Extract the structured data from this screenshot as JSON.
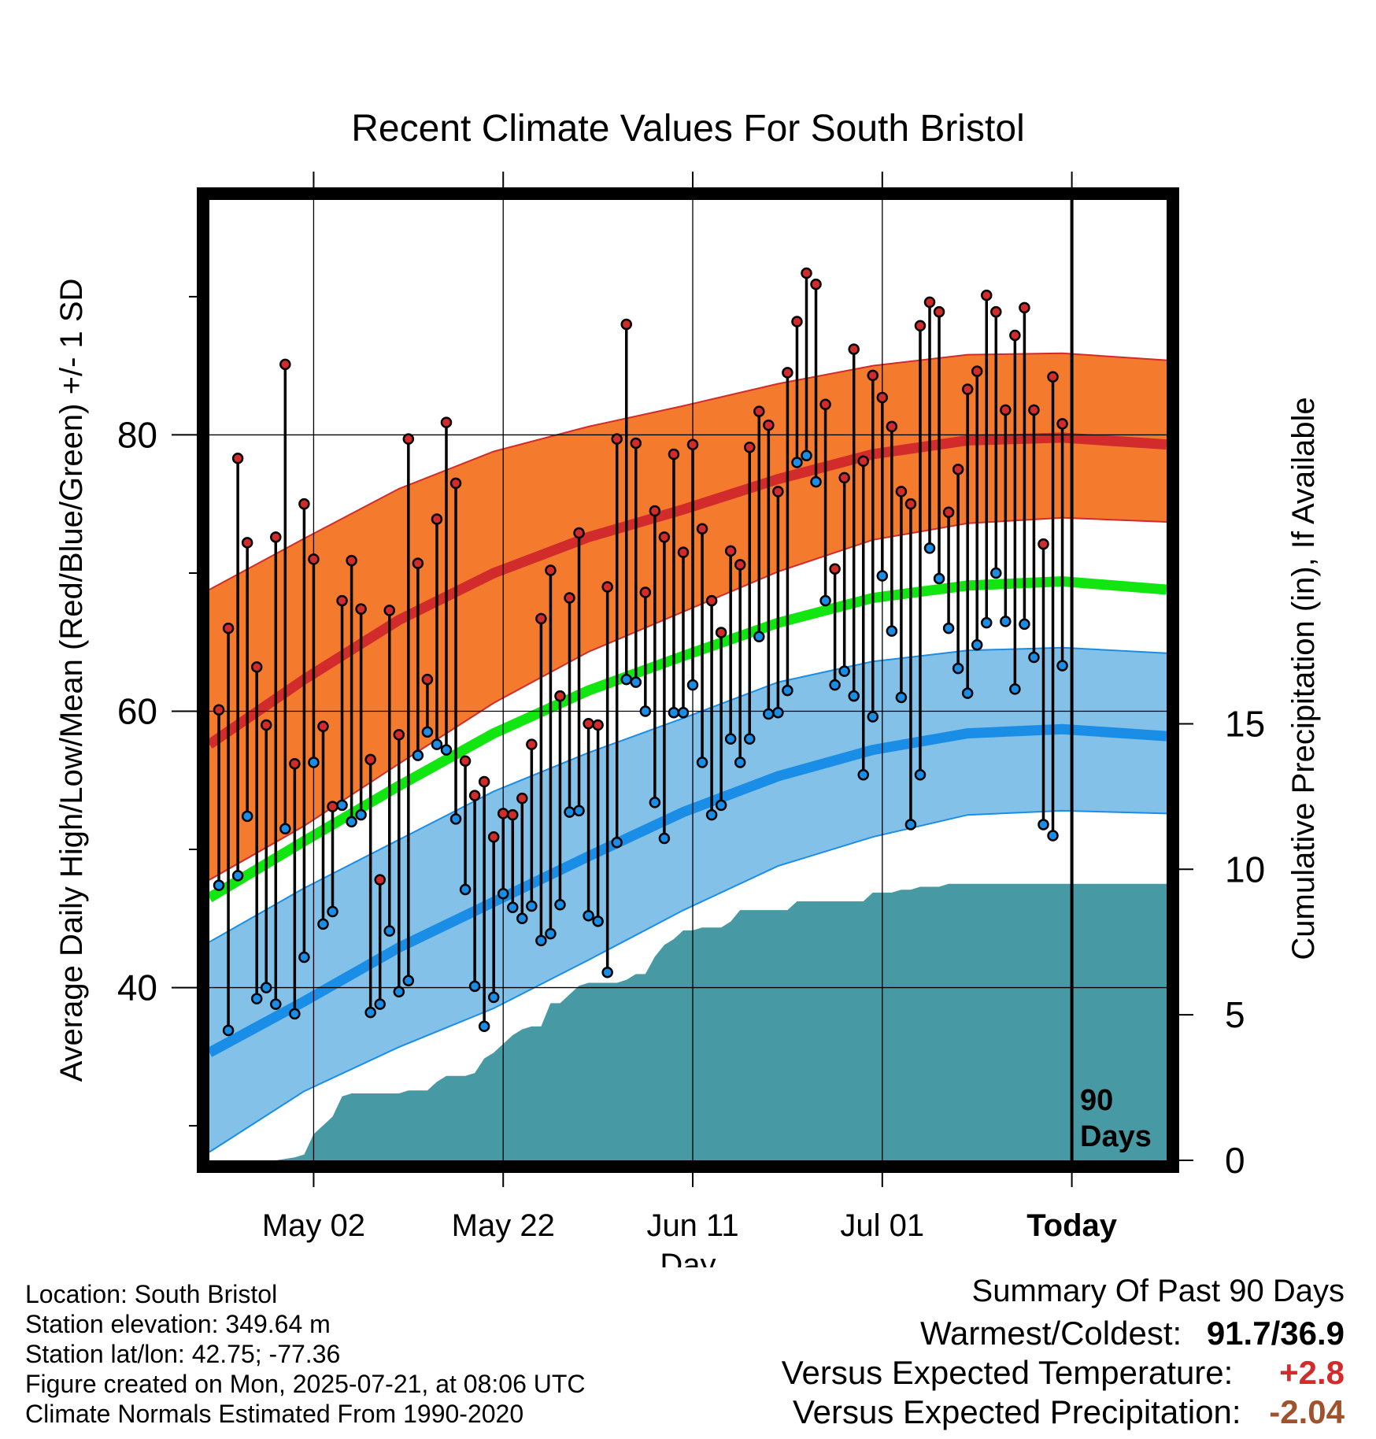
{
  "title": "Recent Climate Values For South Bristol",
  "xlabel": "Day",
  "ylabel_left": "Average Daily High/Low/Mean (Red/Blue/Green) +/- 1 SD",
  "ylabel_right": "Cumulative Precipitation (in), If Available",
  "today_marker_label_1": "90",
  "today_marker_label_2": "Days",
  "info": {
    "location": "Location: South Bristol",
    "elevation": "Station elevation: 349.64 m",
    "latlon": "Station lat/lon: 42.75; -77.36",
    "created": "Figure created on Mon, 2025-07-21, at 08:06 UTC",
    "normals": "Climate Normals Estimated From 1990-2020"
  },
  "summary": {
    "heading": "Summary Of Past 90 Days",
    "warm_cold_label": "Warmest/Coldest:",
    "warm_cold_value": "91.7/36.9",
    "temp_label": "Versus Expected Temperature:",
    "temp_value": "+2.8",
    "precip_label": "Versus Expected Precipitation:",
    "precip_value": "-2.04"
  },
  "colors": {
    "high_band": "#f47b2e",
    "high_line": "#d22b2b",
    "low_band": "#84c1e8",
    "low_line": "#1a8ee6",
    "mean_line": "#11e611",
    "precip_fill": "#479aa4",
    "high_dot": "#d22b2b",
    "low_dot": "#1a8ee6",
    "temp_value": "#d22b2b",
    "precip_value": "#a0522d"
  },
  "chart_data": {
    "type": "line",
    "x_axis": {
      "ticks": [
        "May 02",
        "May 22",
        "Jun 11",
        "Jul 01",
        "Today"
      ],
      "tick_days": [
        11,
        31,
        51,
        71,
        91
      ]
    },
    "y_left": {
      "ticks": [
        40,
        60,
        80
      ],
      "ylim": [
        27.5,
        97
      ]
    },
    "y_right": {
      "ticks": [
        0,
        5,
        10,
        15
      ],
      "ylim": [
        0,
        33
      ]
    },
    "grid": true,
    "today_day": 91,
    "normals": {
      "days": [
        0,
        10,
        20,
        30,
        40,
        50,
        60,
        70,
        80,
        90,
        101
      ],
      "high_mean": [
        57.6,
        62.3,
        66.6,
        70.0,
        72.6,
        74.6,
        76.8,
        78.6,
        79.6,
        79.8,
        79.3
      ],
      "high_upper": [
        68.8,
        72.5,
        76.1,
        78.8,
        80.6,
        82.1,
        83.7,
        85.0,
        85.8,
        85.9,
        85.4
      ],
      "high_lower": [
        47.8,
        51.7,
        56.2,
        60.6,
        64.3,
        67.2,
        70.1,
        72.4,
        73.6,
        74.0,
        73.7
      ],
      "mean": [
        46.5,
        50.6,
        54.6,
        58.4,
        61.5,
        64.0,
        66.4,
        68.2,
        69.1,
        69.4,
        68.8
      ],
      "low_mean": [
        35.3,
        39.0,
        42.9,
        46.2,
        49.5,
        52.7,
        55.3,
        57.2,
        58.4,
        58.7,
        58.2
      ],
      "low_upper": [
        43.3,
        47.2,
        50.7,
        54.2,
        57.0,
        59.5,
        62.1,
        63.6,
        64.4,
        64.6,
        64.2
      ],
      "low_lower": [
        28.1,
        32.5,
        35.7,
        38.5,
        42.0,
        45.6,
        48.8,
        50.9,
        52.5,
        52.8,
        52.6
      ]
    },
    "series": [
      {
        "name": "High",
        "values": [
          60.1,
          66.0,
          78.3,
          72.2,
          63.2,
          59.0,
          72.6,
          85.1,
          56.2,
          75.0,
          71.0,
          58.9,
          53.1,
          68.0,
          70.9,
          67.4,
          56.5,
          47.8,
          67.3,
          58.3,
          79.7,
          70.7,
          62.3,
          73.9,
          80.9,
          76.5,
          56.4,
          53.9,
          54.9,
          50.9,
          52.6,
          52.5,
          53.7,
          57.6,
          66.7,
          70.2,
          61.1,
          68.2,
          72.9,
          59.1,
          59.0,
          69.0,
          79.7,
          88.0,
          79.4,
          68.6,
          74.5,
          72.6,
          78.6,
          71.5,
          79.3,
          73.2,
          68.0,
          65.7,
          71.6,
          70.6,
          79.1,
          81.7,
          80.7,
          75.9,
          84.5,
          88.2,
          91.7,
          90.9,
          82.2,
          70.3,
          76.9,
          86.2,
          78.1,
          84.3,
          82.7,
          80.6,
          75.9,
          75.0,
          87.9,
          89.6,
          88.9,
          74.4,
          77.5,
          83.3,
          84.6,
          90.1,
          88.9,
          81.8,
          87.2,
          89.2,
          81.8,
          72.1,
          84.2,
          80.8
        ]
      },
      {
        "name": "Low",
        "values": [
          47.4,
          36.9,
          48.1,
          52.4,
          39.2,
          40.0,
          38.8,
          51.5,
          38.1,
          42.2,
          56.3,
          44.6,
          45.5,
          53.2,
          52.0,
          52.5,
          38.2,
          38.8,
          44.1,
          39.7,
          40.5,
          56.8,
          58.5,
          57.6,
          57.2,
          52.2,
          47.1,
          40.1,
          37.2,
          39.3,
          46.8,
          45.8,
          45.0,
          45.9,
          43.4,
          43.9,
          46.0,
          52.7,
          52.8,
          45.2,
          44.8,
          41.1,
          50.5,
          62.3,
          62.1,
          60.0,
          53.4,
          50.8,
          59.9,
          59.9,
          61.9,
          56.3,
          52.5,
          53.2,
          58.0,
          56.3,
          58.0,
          65.4,
          59.8,
          59.9,
          61.5,
          78.0,
          78.5,
          76.6,
          68.0,
          61.9,
          62.9,
          61.1,
          55.4,
          59.6,
          69.8,
          65.8,
          61.0,
          51.8,
          55.4,
          71.8,
          69.6,
          66.0,
          63.1,
          61.3,
          64.8,
          66.4,
          70.0,
          66.5,
          61.6,
          66.3,
          63.9,
          51.8,
          51.0,
          63.3
        ]
      }
    ],
    "precipitation": {
      "days": [
        0,
        7,
        9,
        10,
        11,
        12,
        13,
        14,
        15,
        16,
        17,
        18,
        19,
        20,
        21,
        22,
        23,
        24,
        25,
        26,
        27,
        28,
        29,
        30,
        31,
        32,
        33,
        34,
        35,
        36,
        37,
        38,
        39,
        40,
        41,
        42,
        43,
        44,
        45,
        46,
        47,
        48,
        49,
        50,
        51,
        52,
        53,
        54,
        55,
        56,
        57,
        58,
        59,
        60,
        61,
        62,
        63,
        64,
        65,
        66,
        67,
        68,
        69,
        70,
        71,
        72,
        73,
        74,
        75,
        76,
        77,
        78,
        79,
        80,
        81,
        82,
        83,
        84,
        85,
        86,
        87,
        88,
        89,
        90,
        91,
        101
      ],
      "values": [
        0,
        0,
        0.1,
        0.2,
        0.9,
        1.2,
        1.5,
        2.2,
        2.3,
        2.3,
        2.3,
        2.3,
        2.3,
        2.3,
        2.4,
        2.4,
        2.4,
        2.7,
        2.9,
        2.9,
        2.9,
        3.0,
        3.5,
        3.7,
        4.0,
        4.3,
        4.5,
        4.6,
        4.6,
        5.4,
        5.4,
        5.7,
        6.0,
        6.1,
        6.1,
        6.1,
        6.1,
        6.2,
        6.4,
        6.4,
        7.0,
        7.4,
        7.6,
        7.9,
        7.9,
        8.0,
        8.0,
        8.0,
        8.2,
        8.6,
        8.6,
        8.6,
        8.6,
        8.6,
        8.6,
        8.9,
        8.9,
        8.9,
        8.9,
        8.9,
        8.9,
        8.9,
        8.9,
        9.2,
        9.2,
        9.2,
        9.3,
        9.3,
        9.4,
        9.4,
        9.4,
        9.5,
        9.5,
        9.5,
        9.5,
        9.5,
        9.5,
        9.5,
        9.5,
        9.5,
        9.5,
        9.5,
        9.5,
        9.5,
        9.5,
        9.5
      ]
    }
  }
}
